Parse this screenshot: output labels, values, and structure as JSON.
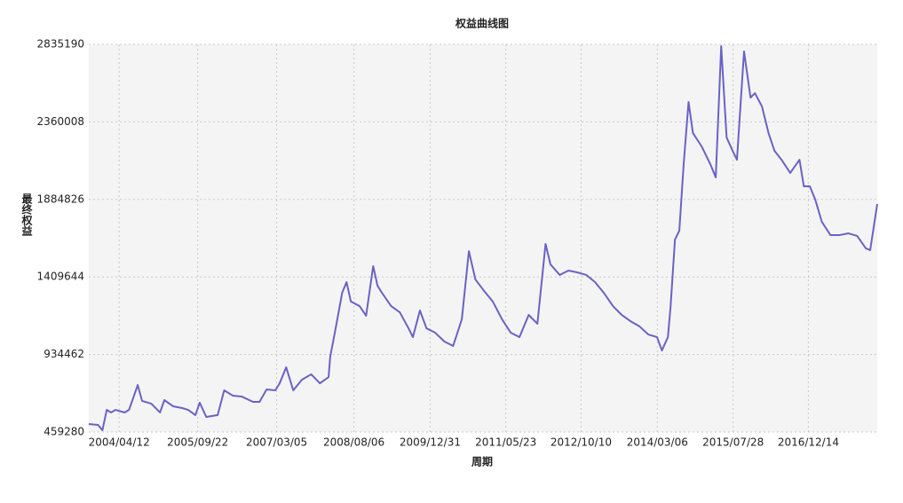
{
  "chart_data": {
    "type": "line",
    "title": "权益曲线图",
    "x_label": "周期",
    "y_label": "最终权益",
    "color": "#6a62c4",
    "grid": true,
    "xlim": [
      2003.72,
      2018.22
    ],
    "ylim": [
      459280,
      2835190
    ],
    "yticks": [
      459280,
      934462,
      1409644,
      1884826,
      2360008,
      2835190
    ],
    "xticks": [
      {
        "value": 2004.278,
        "label": "2004/04/12"
      },
      {
        "value": 2005.724,
        "label": "2005/09/22"
      },
      {
        "value": 2007.175,
        "label": "2007/03/05"
      },
      {
        "value": 2008.596,
        "label": "2008/08/06"
      },
      {
        "value": 2009.997,
        "label": "2009/12/31"
      },
      {
        "value": 2011.389,
        "label": "2011/05/23"
      },
      {
        "value": 2012.773,
        "label": "2012/10/10"
      },
      {
        "value": 2014.175,
        "label": "2014/03/06"
      },
      {
        "value": 2015.57,
        "label": "2015/07/28"
      },
      {
        "value": 2016.953,
        "label": "2016/12/14"
      }
    ],
    "x": [
      2003.72,
      2003.89,
      2003.97,
      2004.05,
      2004.13,
      2004.21,
      2004.38,
      2004.46,
      2004.62,
      2004.7,
      2004.87,
      2005.03,
      2005.11,
      2005.27,
      2005.44,
      2005.55,
      2005.68,
      2005.76,
      2005.88,
      2006.09,
      2006.21,
      2006.37,
      2006.53,
      2006.74,
      2006.86,
      2006.99,
      2007.15,
      2007.23,
      2007.35,
      2007.48,
      2007.64,
      2007.81,
      2007.97,
      2008.13,
      2008.16,
      2008.26,
      2008.38,
      2008.46,
      2008.54,
      2008.7,
      2008.82,
      2008.95,
      2009.03,
      2009.11,
      2009.28,
      2009.44,
      2009.6,
      2009.68,
      2009.81,
      2009.93,
      2010.09,
      2010.26,
      2010.42,
      2010.58,
      2010.71,
      2010.83,
      2010.99,
      2011.15,
      2011.32,
      2011.48,
      2011.64,
      2011.81,
      2011.97,
      2012.12,
      2012.21,
      2012.38,
      2012.54,
      2012.7,
      2012.87,
      2013.03,
      2013.19,
      2013.36,
      2013.52,
      2013.68,
      2013.85,
      2014.01,
      2014.17,
      2014.26,
      2014.37,
      2014.42,
      2014.5,
      2014.58,
      2014.66,
      2014.75,
      2014.83,
      2014.99,
      2015.15,
      2015.25,
      2015.35,
      2015.45,
      2015.56,
      2015.64,
      2015.77,
      2015.89,
      2015.97,
      2016.1,
      2016.22,
      2016.33,
      2016.46,
      2016.62,
      2016.79,
      2016.87,
      2016.98,
      2017.08,
      2017.2,
      2017.36,
      2017.52,
      2017.69,
      2017.85,
      2018.01,
      2018.09,
      2018.17,
      2018.22
    ],
    "values": [
      508000,
      503000,
      470000,
      595000,
      579000,
      595000,
      579000,
      595000,
      747000,
      650000,
      633000,
      579000,
      655000,
      617000,
      606000,
      595000,
      563000,
      639000,
      552000,
      563000,
      715000,
      682000,
      677000,
      644000,
      644000,
      720000,
      715000,
      758000,
      856000,
      715000,
      780000,
      813000,
      758000,
      796000,
      921000,
      1095000,
      1313000,
      1378000,
      1259000,
      1231000,
      1172000,
      1476000,
      1356000,
      1313000,
      1231000,
      1193000,
      1095000,
      1041000,
      1204000,
      1095000,
      1068000,
      1014000,
      987000,
      1150000,
      1568000,
      1394000,
      1324000,
      1259000,
      1150000,
      1068000,
      1041000,
      1177000,
      1123000,
      1612000,
      1487000,
      1422000,
      1449000,
      1438000,
      1422000,
      1378000,
      1313000,
      1231000,
      1177000,
      1139000,
      1106000,
      1057000,
      1041000,
      959000,
      1041000,
      1231000,
      1639000,
      1693000,
      2101000,
      2482000,
      2292000,
      2210000,
      2101000,
      2020000,
      2824000,
      2264000,
      2183000,
      2128000,
      2792000,
      2509000,
      2536000,
      2455000,
      2292000,
      2183000,
      2128000,
      2047000,
      2128000,
      1965000,
      1965000,
      1884000,
      1748000,
      1666000,
      1666000,
      1677000,
      1661000,
      1585000,
      1574000,
      1748000,
      1857000
    ]
  }
}
